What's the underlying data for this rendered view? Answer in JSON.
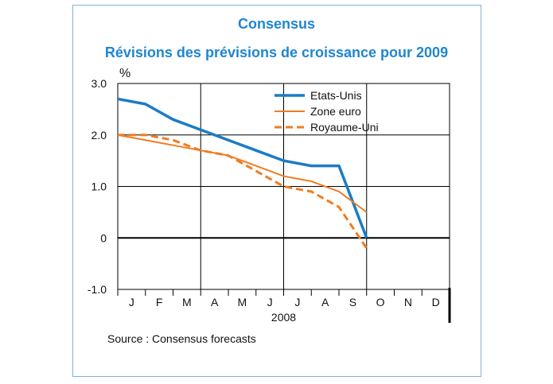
{
  "chart_data": {
    "type": "line",
    "title": "Consensus",
    "subtitle": "Révisions des prévisions de croissance pour 2009",
    "ylabel": "%",
    "xlabel": "2008",
    "ylim": [
      -1.0,
      3.0
    ],
    "yticks": [
      "3.0",
      "2.0",
      "1.0",
      "0",
      "-1.0"
    ],
    "ytick_values": [
      3.0,
      2.0,
      1.0,
      0,
      -1.0
    ],
    "categories": [
      "J",
      "F",
      "M",
      "A",
      "M",
      "J",
      "J",
      "A",
      "S",
      "O",
      "N",
      "D"
    ],
    "x_unit": "month index (0 = start of January 2008)",
    "legend_position": "top-right",
    "grid": "vertical lines at each quarter boundary",
    "series": [
      {
        "name": "Etats-Unis",
        "color": "#1a7cc7",
        "style": "solid-thick",
        "x": [
          0,
          1,
          2,
          3,
          4,
          5,
          6,
          7,
          8,
          8.5,
          9
        ],
        "values": [
          2.7,
          2.6,
          2.3,
          2.1,
          1.9,
          1.7,
          1.5,
          1.4,
          1.4,
          0.7,
          0.0
        ]
      },
      {
        "name": "Zone euro",
        "color": "#ee7d22",
        "style": "solid-thin",
        "x": [
          0,
          1,
          2,
          3,
          4,
          5,
          6,
          7,
          8,
          9
        ],
        "values": [
          2.0,
          1.9,
          1.8,
          1.7,
          1.6,
          1.4,
          1.2,
          1.1,
          0.9,
          0.5
        ]
      },
      {
        "name": "Royaume-Uni",
        "color": "#ee7d22",
        "style": "dashed",
        "x": [
          0,
          1,
          2,
          3,
          4,
          5,
          6,
          7,
          8,
          9
        ],
        "values": [
          2.0,
          2.0,
          1.9,
          1.7,
          1.6,
          1.3,
          1.0,
          0.9,
          0.6,
          -0.2
        ]
      }
    ]
  },
  "source": "Source : Consensus forecasts"
}
